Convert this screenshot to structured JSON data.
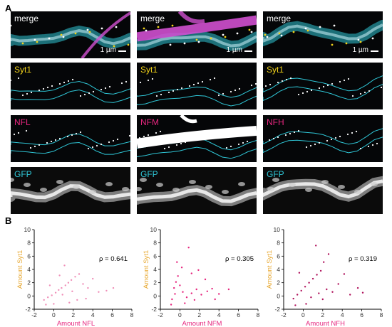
{
  "figure": {
    "section_a_label": "A",
    "section_b_label": "B",
    "label_colors": {
      "merge": "#ffffff",
      "Syt1": "#f2d21a",
      "NFL": "#e6267e",
      "NFM": "#e6267e",
      "NFH": "#e6267e",
      "GFP": "#2fc6d6"
    },
    "columns": [
      {
        "labels": [
          "merge",
          "Syt1",
          "NFL",
          "GFP"
        ],
        "scalebar": "1 µm"
      },
      {
        "labels": [
          "merge",
          "Syt1",
          "NFM",
          "GFP"
        ],
        "scalebar": "1 µm"
      },
      {
        "labels": [
          "merge",
          "Syt1",
          "NFH",
          "GFP"
        ],
        "scalebar": "1 µm"
      }
    ]
  },
  "colors": {
    "nfl_points": "#f08fb8",
    "nfm_points": "#e6267e",
    "nfh_points": "#b0125c",
    "cyan": "#2fc6d6",
    "magenta": "#d050d0",
    "syt_axis_label": "#e8a830",
    "nf_axis_label": "#e6267e"
  },
  "chart_data": [
    {
      "type": "scatter",
      "xlabel": "Amount NFL",
      "ylabel": "Amount Syt1",
      "xlim": [
        -2,
        8
      ],
      "ylim": [
        -2,
        10
      ],
      "xticks": [
        -2,
        0,
        2,
        4,
        6,
        8
      ],
      "yticks": [
        -2,
        0,
        2,
        4,
        6,
        8,
        10
      ],
      "annotation": "ρ = 0.641",
      "series": [
        {
          "color": "#f08fb8",
          "points": [
            [
              -1.0,
              -0.6
            ],
            [
              -0.6,
              -0.2
            ],
            [
              -0.2,
              0.1
            ],
            [
              0.2,
              0.5
            ],
            [
              0.5,
              0.9
            ],
            [
              0.8,
              1.2
            ],
            [
              1.2,
              1.6
            ],
            [
              1.5,
              2.0
            ],
            [
              1.8,
              2.4
            ],
            [
              2.2,
              2.9
            ],
            [
              2.6,
              3.3
            ],
            [
              3.0,
              1.8
            ],
            [
              3.5,
              1.2
            ],
            [
              4.0,
              2.6
            ],
            [
              4.6,
              0.6
            ],
            [
              5.4,
              0.8
            ],
            [
              6.1,
              1.2
            ],
            [
              1.1,
              4.6
            ],
            [
              0.6,
              3.1
            ],
            [
              -0.4,
              1.6
            ],
            [
              2.4,
              -0.6
            ],
            [
              3.3,
              -0.4
            ],
            [
              0.0,
              -1.2
            ],
            [
              -0.8,
              -1.3
            ],
            [
              1.6,
              -1.0
            ],
            [
              0.9,
              0.2
            ],
            [
              1.9,
              0.7
            ]
          ]
        }
      ]
    },
    {
      "type": "scatter",
      "xlabel": "Amount NFM",
      "ylabel": "Amount Syt1",
      "xlim": [
        -2,
        8
      ],
      "ylim": [
        -2,
        10
      ],
      "xticks": [
        -2,
        0,
        2,
        4,
        6,
        8
      ],
      "yticks": [
        -2,
        0,
        2,
        4,
        6,
        8,
        10
      ],
      "annotation": "ρ = 0.305",
      "series": [
        {
          "color": "#e6267e",
          "points": [
            [
              -0.8,
              -0.5
            ],
            [
              -0.5,
              0.3
            ],
            [
              -0.6,
              1.2
            ],
            [
              -0.4,
              2.1
            ],
            [
              -0.2,
              3.0
            ],
            [
              0.0,
              1.6
            ],
            [
              0.3,
              0.6
            ],
            [
              0.7,
              -0.2
            ],
            [
              1.2,
              0.4
            ],
            [
              1.7,
              1.0
            ],
            [
              2.2,
              0.2
            ],
            [
              2.8,
              0.7
            ],
            [
              3.3,
              1.1
            ],
            [
              4.0,
              0.3
            ],
            [
              0.9,
              7.3
            ],
            [
              1.2,
              3.4
            ],
            [
              1.9,
              3.9
            ],
            [
              2.6,
              2.5
            ],
            [
              5.0,
              1.0
            ],
            [
              -0.9,
              -1.3
            ],
            [
              0.5,
              -1.1
            ],
            [
              1.5,
              -0.6
            ],
            [
              0.2,
              4.3
            ],
            [
              -0.3,
              5.1
            ],
            [
              3.6,
              -0.5
            ]
          ]
        }
      ]
    },
    {
      "type": "scatter",
      "xlabel": "Amount NFH",
      "ylabel": "Amount Syt1",
      "xlim": [
        -2,
        8
      ],
      "ylim": [
        -2,
        10
      ],
      "xticks": [
        -2,
        0,
        2,
        4,
        6,
        8
      ],
      "yticks": [
        -2,
        0,
        2,
        4,
        6,
        8,
        10
      ],
      "annotation": "ρ = 0.319",
      "series": [
        {
          "color": "#b0125c",
          "points": [
            [
              -1.0,
              -0.4
            ],
            [
              -0.6,
              0.2
            ],
            [
              -0.2,
              0.8
            ],
            [
              0.2,
              1.4
            ],
            [
              0.6,
              2.0
            ],
            [
              1.0,
              2.6
            ],
            [
              1.4,
              3.2
            ],
            [
              1.8,
              3.8
            ],
            [
              0.8,
              -0.2
            ],
            [
              1.6,
              0.4
            ],
            [
              2.4,
              1.0
            ],
            [
              3.0,
              0.6
            ],
            [
              3.6,
              1.8
            ],
            [
              4.2,
              3.3
            ],
            [
              4.8,
              0.2
            ],
            [
              5.6,
              1.2
            ],
            [
              6.1,
              0.5
            ],
            [
              2.1,
              5.1
            ],
            [
              1.3,
              7.6
            ],
            [
              2.6,
              6.3
            ],
            [
              -0.4,
              3.5
            ],
            [
              0.3,
              -1.2
            ],
            [
              -0.8,
              -1.4
            ],
            [
              2.0,
              -0.5
            ]
          ]
        }
      ]
    }
  ]
}
